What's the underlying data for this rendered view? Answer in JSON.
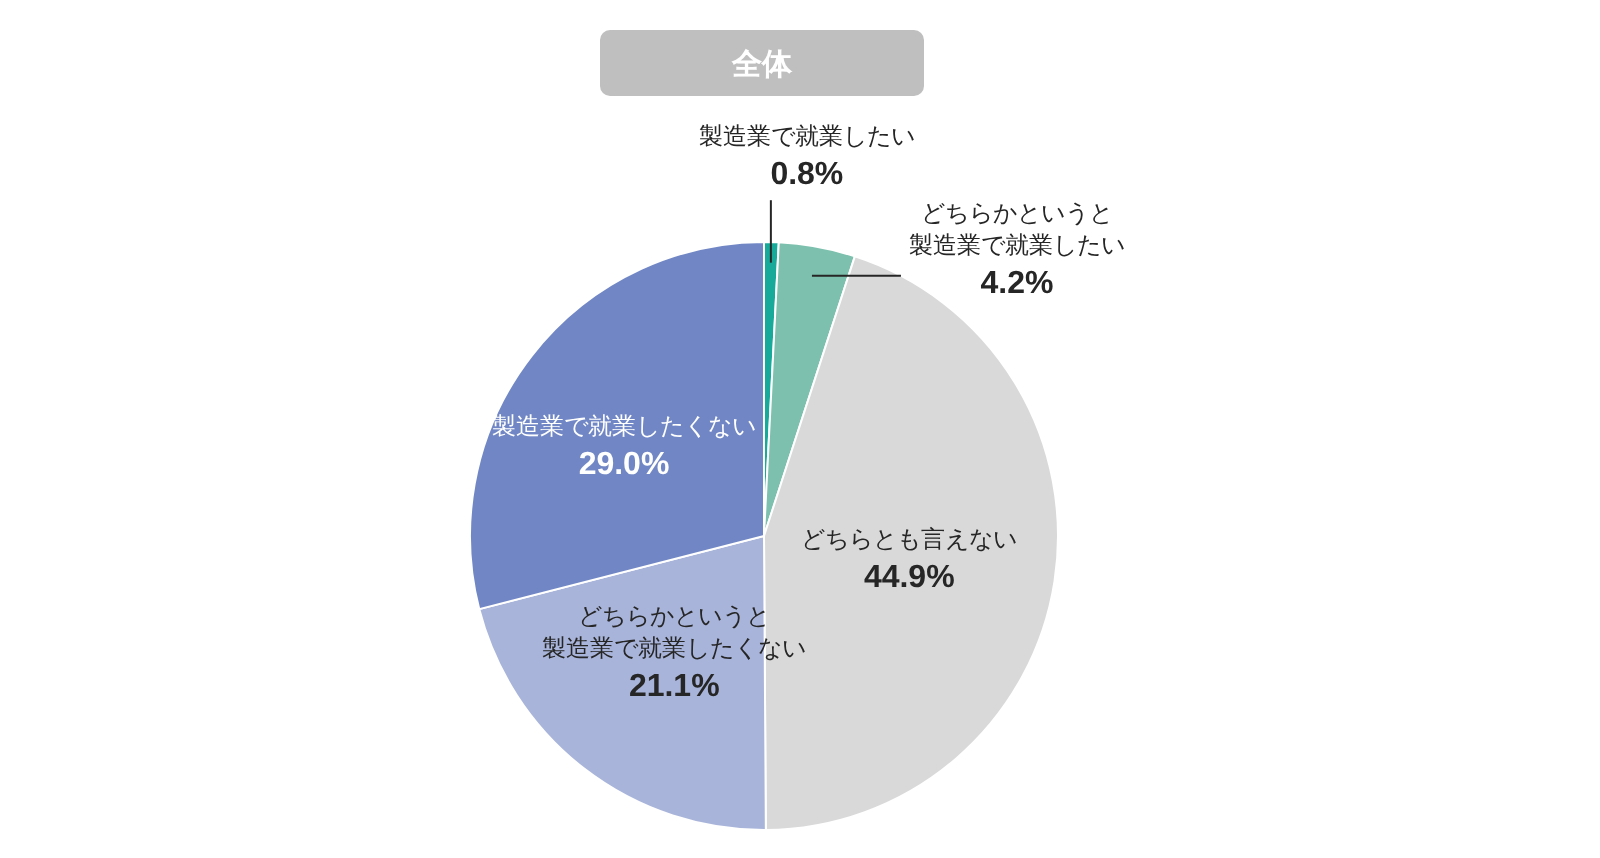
{
  "chart_data": {
    "type": "pie",
    "title": "全体",
    "categories": [
      "製造業で就業したい",
      "どちらかというと製造業で就業したい",
      "どちらとも言えない",
      "どちらかというと製造業で就業したくない",
      "製造業で就業したくない"
    ],
    "values": [
      0.8,
      4.2,
      44.9,
      21.1,
      29.0
    ],
    "colors": [
      "#17aa9a",
      "#7cc0ad",
      "#d9d9d9",
      "#a8b4da",
      "#7187c5"
    ],
    "value_labels": [
      "0.8%",
      "4.2%",
      "44.9%",
      "21.1%",
      "29.0%"
    ]
  }
}
